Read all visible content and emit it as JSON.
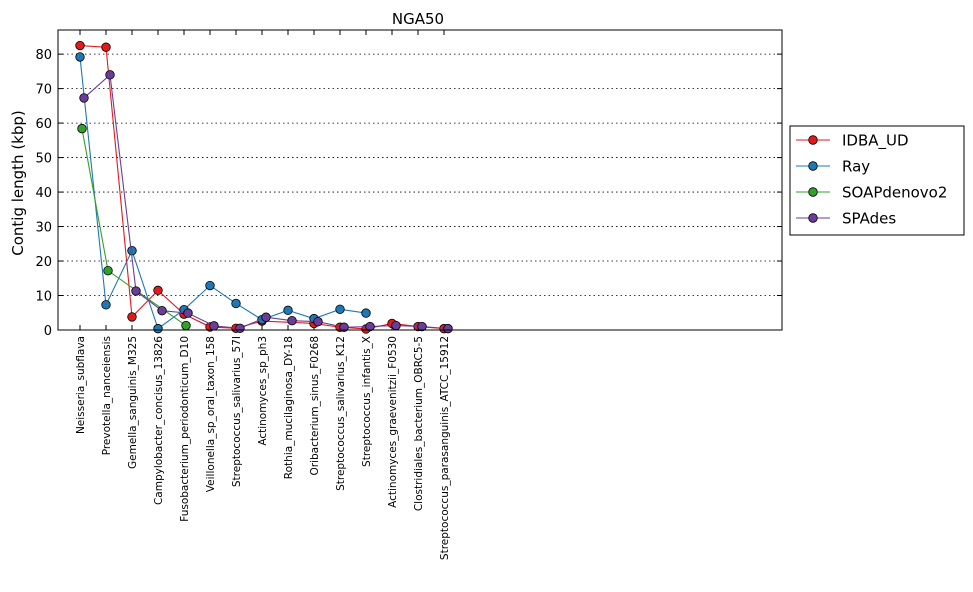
{
  "chart_data": {
    "type": "line",
    "title": "NGA50",
    "xlabel": "",
    "ylabel": "Contig length (kbp)",
    "ylim": [
      0,
      87
    ],
    "yticks": [
      0,
      10,
      20,
      30,
      40,
      50,
      60,
      70,
      80
    ],
    "grid": "horizontal dotted",
    "legend_position": "right",
    "categories": [
      "Neisseria_subflava",
      "Prevotella_nanceiensis",
      "Gemella_sanguinis_M325",
      "Campylobacter_concisus_13826",
      "Fusobacterium_periodonticum_D10",
      "Veillonella_sp_oral_taxon_158",
      "Streptococcus_salivarius_57I",
      "Actinomyces_sp_ph3",
      "Rothia_mucilaginosa_DY-18",
      "Oribacterium_sinus_F0268",
      "Streptococcus_salivarius_K12",
      "Streptococcus_infantis_X",
      "Actinomyces_graevenitzii_F0530",
      "Clostridiales_bacterium_OBRC5-5",
      "Streptococcus_parasanguinis_ATCC_15912"
    ],
    "series": [
      {
        "name": "IDBA_UD",
        "color": "#e31a1c",
        "values": [
          82.5,
          82.0,
          3.8,
          11.5,
          4.6,
          0.9,
          0.5,
          2.6,
          null,
          1.9,
          0.8,
          0.3,
          1.9,
          1.0,
          0.4
        ]
      },
      {
        "name": "Ray",
        "color": "#1f78b4",
        "values": [
          79.2,
          7.3,
          23.0,
          0.4,
          5.9,
          12.9,
          7.7,
          3.0,
          5.7,
          3.3,
          6.0,
          4.9,
          null,
          null,
          null
        ]
      },
      {
        "name": "SOAPdenovo2",
        "color": "#33a02c",
        "values": [
          58.4,
          17.2,
          null,
          null,
          1.3,
          null,
          null,
          null,
          null,
          null,
          null,
          null,
          null,
          null,
          null
        ]
      },
      {
        "name": "SPAdes",
        "color": "#6a3d9a",
        "values": [
          67.3,
          74.0,
          11.3,
          5.6,
          4.9,
          1.2,
          0.5,
          3.7,
          2.7,
          2.4,
          0.8,
          1.0,
          1.3,
          1.0,
          0.4
        ]
      }
    ]
  }
}
